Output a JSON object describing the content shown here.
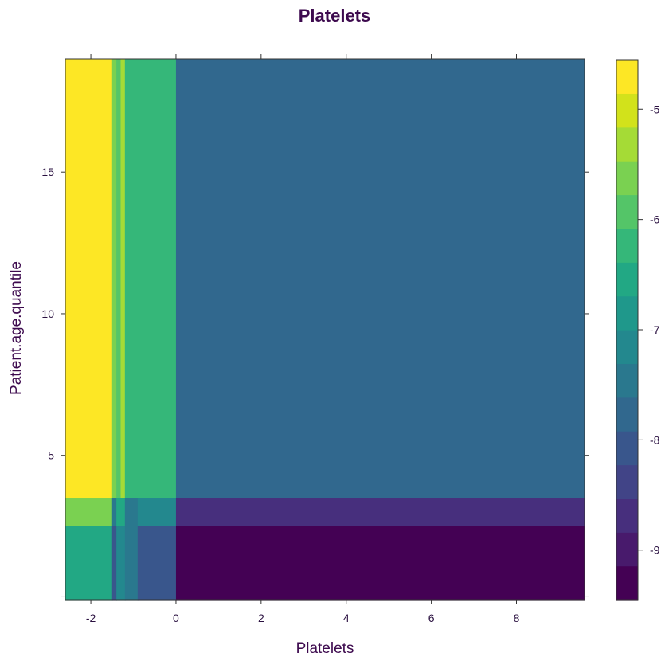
{
  "chart_data": {
    "type": "heatmap",
    "title": "Platelets",
    "xlabel": "Platelets",
    "ylabel": "Patient.age.quantile",
    "xlim": [
      -2.6,
      9.6
    ],
    "ylim": [
      -0.1,
      19.0
    ],
    "x_ticks": [
      -2,
      0,
      2,
      4,
      6,
      8
    ],
    "x_tick_labels": [
      "-2",
      "0",
      "2",
      "4",
      "6",
      "8"
    ],
    "y_ticks": [
      0,
      5,
      10,
      15
    ],
    "y_tick_labels": [
      "",
      "5",
      "10",
      "15"
    ],
    "colorbar": {
      "range": [
        -9.45,
        -4.55
      ],
      "ticks": [
        -9,
        -8,
        -7,
        -6,
        -5
      ],
      "tick_labels": [
        "-9",
        "-8",
        "-7",
        "-6",
        "-5"
      ],
      "colors": [
        "#440154",
        "#481a6c",
        "#472f7d",
        "#414487",
        "#39568c",
        "#31688e",
        "#2a788e",
        "#23888e",
        "#1f988b",
        "#22a884",
        "#35b779",
        "#54c568",
        "#7ad151",
        "#a5db36",
        "#d2e21b",
        "#fde725"
      ]
    },
    "regions": [
      {
        "x": [
          -2.6,
          -1.5
        ],
        "y": [
          3.5,
          19.0
        ],
        "value": -4.8
      },
      {
        "x": [
          -1.5,
          -1.4
        ],
        "y": [
          3.5,
          19.0
        ],
        "value": -5.6
      },
      {
        "x": [
          -1.4,
          -1.3
        ],
        "y": [
          3.5,
          19.0
        ],
        "value": -6.0
      },
      {
        "x": [
          -1.3,
          -1.2
        ],
        "y": [
          3.5,
          19.0
        ],
        "value": -5.3
      },
      {
        "x": [
          -1.2,
          -0.1
        ],
        "y": [
          3.5,
          19.0
        ],
        "value": -6.1
      },
      {
        "x": [
          -0.1,
          0.0
        ],
        "y": [
          3.5,
          19.0
        ],
        "value": -6.3
      },
      {
        "x": [
          0.0,
          9.6
        ],
        "y": [
          3.5,
          19.0
        ],
        "value": -7.9
      },
      {
        "x": [
          -2.6,
          -1.5
        ],
        "y": [
          2.5,
          3.5
        ],
        "value": -5.5
      },
      {
        "x": [
          -1.5,
          -1.4
        ],
        "y": [
          2.5,
          3.5
        ],
        "value": -7.5
      },
      {
        "x": [
          -1.4,
          -1.2
        ],
        "y": [
          2.5,
          3.5
        ],
        "value": -6.6
      },
      {
        "x": [
          -1.2,
          -0.9
        ],
        "y": [
          2.5,
          3.5
        ],
        "value": -7.6
      },
      {
        "x": [
          -0.9,
          0.0
        ],
        "y": [
          2.5,
          3.5
        ],
        "value": -7.3
      },
      {
        "x": [
          0.0,
          9.6
        ],
        "y": [
          2.5,
          3.5
        ],
        "value": -8.6
      },
      {
        "x": [
          -2.6,
          -1.5
        ],
        "y": [
          -0.1,
          2.5
        ],
        "value": -6.5
      },
      {
        "x": [
          -1.5,
          -1.4
        ],
        "y": [
          -0.1,
          2.5
        ],
        "value": -8.0
      },
      {
        "x": [
          -1.4,
          -1.2
        ],
        "y": [
          -0.1,
          2.5
        ],
        "value": -7.0
      },
      {
        "x": [
          -1.2,
          -0.9
        ],
        "y": [
          -0.1,
          2.5
        ],
        "value": -7.6
      },
      {
        "x": [
          -0.9,
          0.0
        ],
        "y": [
          -0.1,
          2.5
        ],
        "value": -8.0
      },
      {
        "x": [
          0.0,
          9.6
        ],
        "y": [
          -0.1,
          2.5
        ],
        "value": -9.3
      }
    ]
  }
}
